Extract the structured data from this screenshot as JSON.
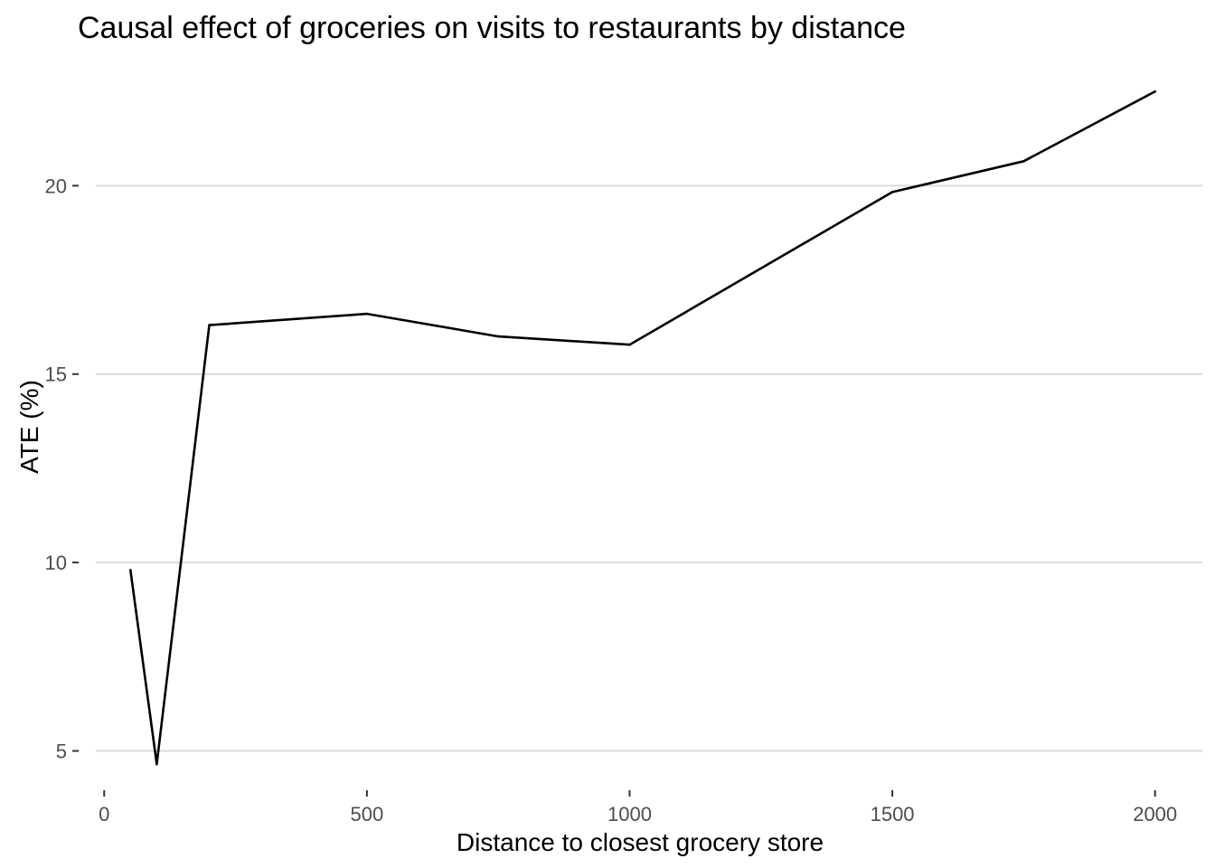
{
  "chart_data": {
    "type": "line",
    "title": "Causal effect of groceries on visits to restaurants by distance",
    "xlabel": "Distance to closest grocery store",
    "ylabel": "ATE (%)",
    "xlim": [
      -40,
      2090
    ],
    "ylim": [
      4.1,
      23.2
    ],
    "x_ticks": [
      0,
      500,
      1000,
      1500,
      2000
    ],
    "x_tick_labels": [
      "0",
      "500",
      "1000",
      "1500",
      "2000"
    ],
    "y_ticks": [
      5,
      10,
      15,
      20
    ],
    "y_tick_labels": [
      "5",
      "10",
      "15",
      "20"
    ],
    "grid": "horizontal-major",
    "legend": "none",
    "series": [
      {
        "color": "#000000",
        "x": [
          50,
          100,
          200,
          500,
          750,
          1000,
          1500,
          1750,
          2000
        ],
        "y": [
          9.8,
          4.65,
          16.3,
          16.6,
          16.0,
          15.78,
          19.83,
          20.65,
          22.5
        ]
      }
    ]
  },
  "colors": {
    "background": "#ffffff",
    "gridline": "#d9d9d9",
    "tick_label": "#4d4d4d",
    "line": "#000000"
  }
}
